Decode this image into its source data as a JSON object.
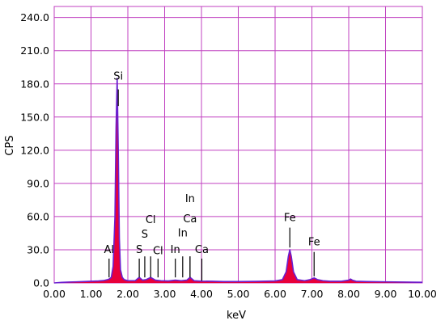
{
  "chart_data": {
    "type": "area",
    "title": "",
    "xlabel": "keV",
    "ylabel": "CPS",
    "xlim": [
      0,
      10
    ],
    "ylim": [
      0,
      250
    ],
    "grid": true,
    "x_ticks": [
      "0.00",
      "1.00",
      "2.00",
      "3.00",
      "4.00",
      "5.00",
      "6.00",
      "7.00",
      "8.00",
      "9.00",
      "10.00"
    ],
    "y_ticks": [
      "0.0",
      "30.0",
      "60.0",
      "90.0",
      "120.0",
      "150.0",
      "180.0",
      "210.0",
      "240.0"
    ],
    "y_tick_values": [
      0,
      30,
      60,
      90,
      120,
      150,
      180,
      210,
      240
    ],
    "colors": {
      "fill": "#e8003a",
      "line": "#6a1fd0",
      "grid": "#c040c0",
      "marker": "#000000"
    },
    "spectrum": {
      "x": [
        0.0,
        0.2,
        0.4,
        0.6,
        0.8,
        1.0,
        1.2,
        1.35,
        1.45,
        1.49,
        1.55,
        1.6,
        1.65,
        1.68,
        1.71,
        1.74,
        1.77,
        1.8,
        1.85,
        1.9,
        2.0,
        2.2,
        2.31,
        2.4,
        2.5,
        2.62,
        2.75,
        2.9,
        3.1,
        3.29,
        3.45,
        3.6,
        3.69,
        3.8,
        4.0,
        4.3,
        4.6,
        5.0,
        5.5,
        6.0,
        6.2,
        6.3,
        6.36,
        6.4,
        6.44,
        6.5,
        6.6,
        6.8,
        6.95,
        7.06,
        7.15,
        7.3,
        7.5,
        7.8,
        8.0,
        8.05,
        8.1,
        8.2,
        8.5,
        9.0,
        9.5,
        10.0
      ],
      "y": [
        0,
        0.5,
        0.8,
        1,
        1.2,
        1.5,
        1.8,
        2.2,
        3,
        3.5,
        5,
        15,
        60,
        140,
        185,
        120,
        40,
        12,
        5,
        3,
        2,
        2,
        5,
        2.5,
        3,
        5,
        2.5,
        2,
        1.8,
        2.5,
        2,
        2.5,
        5,
        2,
        1.6,
        1.5,
        1.2,
        1.2,
        1.4,
        1.8,
        3,
        10,
        24,
        30,
        24,
        10,
        3,
        2,
        3,
        4.5,
        3,
        2,
        1.5,
        1.5,
        2.5,
        3.5,
        2.5,
        1.5,
        1.2,
        1,
        0.8,
        0.6
      ]
    },
    "annotations": [
      {
        "text": "Si",
        "x": 1.74,
        "marker_top": 175,
        "marker_bottom": 160,
        "label_y": 184
      },
      {
        "text": "Al",
        "x": 1.49,
        "marker_top": 22,
        "marker_bottom": 5,
        "label_y": 27
      },
      {
        "text": "S",
        "x": 2.31,
        "marker_top": 22,
        "marker_bottom": 5,
        "label_y": 27
      },
      {
        "text": "S",
        "x": 2.46,
        "marker_top": 24,
        "marker_bottom": 5,
        "label_y": 41
      },
      {
        "text": "Cl",
        "x": 2.62,
        "marker_top": 24,
        "marker_bottom": 5,
        "label_y": 54
      },
      {
        "text": "Cl",
        "x": 2.82,
        "marker_top": 22,
        "marker_bottom": 5,
        "label_y": 26
      },
      {
        "text": "In",
        "x": 3.29,
        "marker_top": 22,
        "marker_bottom": 5,
        "label_y": 27
      },
      {
        "text": "In",
        "x": 3.49,
        "marker_top": 24,
        "marker_bottom": 5,
        "label_y": 42
      },
      {
        "text": "Ca",
        "x": 3.69,
        "marker_top": 24,
        "marker_bottom": 5,
        "label_y": 55
      },
      {
        "text": "In",
        "x": 3.69,
        "marker_top": 24,
        "marker_bottom": 5,
        "label_y": 73
      },
      {
        "text": "Ca",
        "x": 4.01,
        "marker_top": 22,
        "marker_bottom": 2,
        "label_y": 27
      },
      {
        "text": "Fe",
        "x": 6.4,
        "marker_top": 50,
        "marker_bottom": 32,
        "label_y": 56
      },
      {
        "text": "Fe",
        "x": 7.06,
        "marker_top": 28,
        "marker_bottom": 6,
        "label_y": 34
      }
    ]
  }
}
